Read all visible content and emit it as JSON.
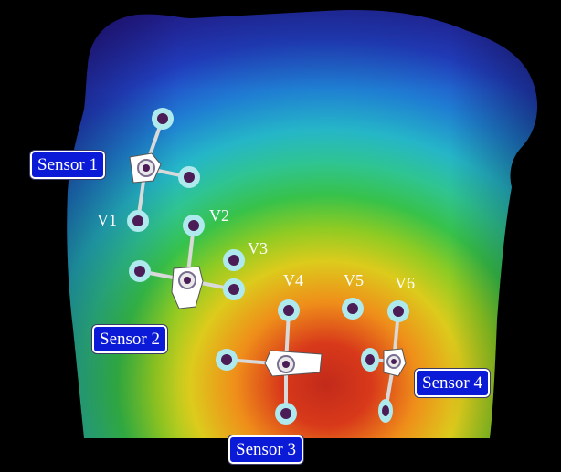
{
  "sensors": [
    {
      "label": "Sensor 1"
    },
    {
      "label": "Sensor 2"
    },
    {
      "label": "Sensor 3"
    },
    {
      "label": "Sensor 4"
    }
  ],
  "leads": [
    {
      "label": "V1"
    },
    {
      "label": "V2"
    },
    {
      "label": "V3"
    },
    {
      "label": "V4"
    },
    {
      "label": "V5"
    },
    {
      "label": "V6"
    }
  ],
  "colors": {
    "background": "#000000",
    "label_fill": "#0b1ad6",
    "label_border": "#ffffff",
    "electrode_ring": "#aee9ee",
    "electrode_core": "#4b1c56"
  },
  "colormap": [
    "#2a1ea6",
    "#2340c8",
    "#1f7fd2",
    "#25b6c8",
    "#2fc492",
    "#37c24a",
    "#8fcb23",
    "#d9c91c",
    "#ef8e1a",
    "#e4501c",
    "#c22a1a"
  ]
}
